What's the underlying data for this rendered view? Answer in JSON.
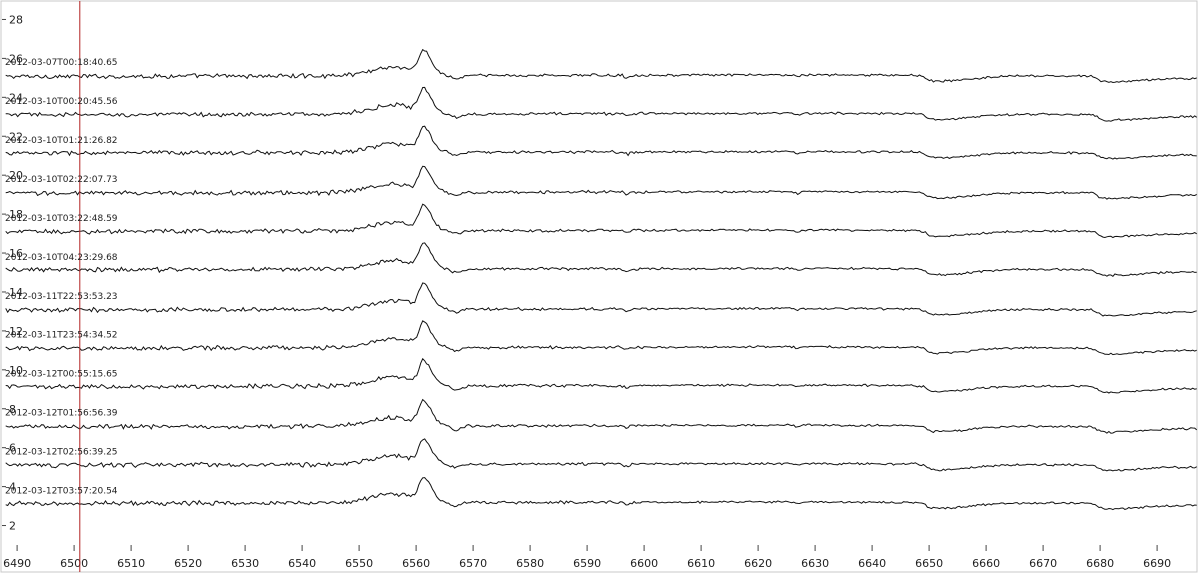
{
  "chart_data": {
    "type": "line",
    "title": "",
    "xlabel": "",
    "ylabel": "",
    "xlim": [
      6487,
      6697
    ],
    "ylim": [
      1,
      29
    ],
    "x_ticks": [
      6490,
      6500,
      6510,
      6520,
      6530,
      6540,
      6550,
      6560,
      6570,
      6580,
      6590,
      6600,
      6610,
      6620,
      6630,
      6640,
      6650,
      6660,
      6670,
      6680,
      6690
    ],
    "y_ticks": [
      2,
      4,
      6,
      8,
      10,
      12,
      14,
      16,
      18,
      20,
      22,
      24,
      26,
      28
    ],
    "marker_line_x": 6501,
    "colors": {
      "trace": "#111111",
      "marker_line": "#b22222",
      "frame": "#c8c8c8",
      "tick": "#444444"
    },
    "grid": false,
    "series": [
      {
        "name": "2012-03-07T00:18:40.65",
        "offset": 25.1
      },
      {
        "name": "2012-03-10T00:20:45.56",
        "offset": 23.1
      },
      {
        "name": "2012-03-10T01:21:26.82",
        "offset": 21.1
      },
      {
        "name": "2012-03-10T02:22:07.73",
        "offset": 19.1
      },
      {
        "name": "2012-03-10T03:22:48.59",
        "offset": 17.1
      },
      {
        "name": "2012-03-10T04:23:29.68",
        "offset": 15.1
      },
      {
        "name": "2012-03-11T22:53:53.23",
        "offset": 13.1
      },
      {
        "name": "2012-03-11T23:54:34.52",
        "offset": 11.1
      },
      {
        "name": "2012-03-12T00:55:15.65",
        "offset": 9.1
      },
      {
        "name": "2012-03-12T01:56:56.39",
        "offset": 7.1
      },
      {
        "name": "2012-03-12T02:56:39.25",
        "offset": 5.1
      },
      {
        "name": "2012-03-12T03:57:20.54",
        "offset": 3.1
      }
    ]
  }
}
